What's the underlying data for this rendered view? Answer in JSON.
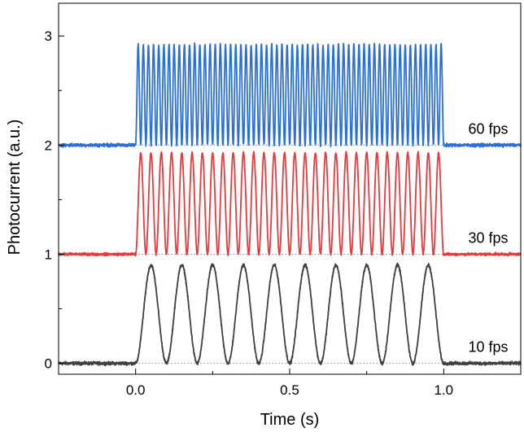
{
  "chart_data": {
    "type": "line",
    "title": "",
    "xlabel": "Time (s)",
    "ylabel": "Photocurrent (a.u.)",
    "xlim": [
      -0.25,
      1.25
    ],
    "ylim": [
      -0.1,
      3.3
    ],
    "x_ticks": [
      0.0,
      0.5,
      1.0
    ],
    "x_tick_labels": [
      "0.0",
      "0.5",
      "1.0"
    ],
    "y_ticks": [
      0,
      1,
      2,
      3
    ],
    "y_tick_labels": [
      "0",
      "1",
      "2",
      "3"
    ],
    "grid": false,
    "series": [
      {
        "name": "10 fps",
        "color": "#3f3f3f",
        "baseline": 0.0,
        "peak": 0.9,
        "frequency_hz": 10,
        "pulse_start": 0.0,
        "pulse_end": 1.0,
        "noise": 0.012
      },
      {
        "name": "30 fps",
        "color": "#e8393d",
        "baseline": 1.0,
        "peak": 1.93,
        "frequency_hz": 30,
        "pulse_start": 0.0,
        "pulse_end": 1.0,
        "noise": 0.01
      },
      {
        "name": "60 fps",
        "color": "#2a6fd6",
        "baseline": 2.0,
        "peak": 2.92,
        "frequency_hz": 60,
        "pulse_start": 0.0,
        "pulse_end": 1.0,
        "noise": 0.012
      }
    ]
  }
}
